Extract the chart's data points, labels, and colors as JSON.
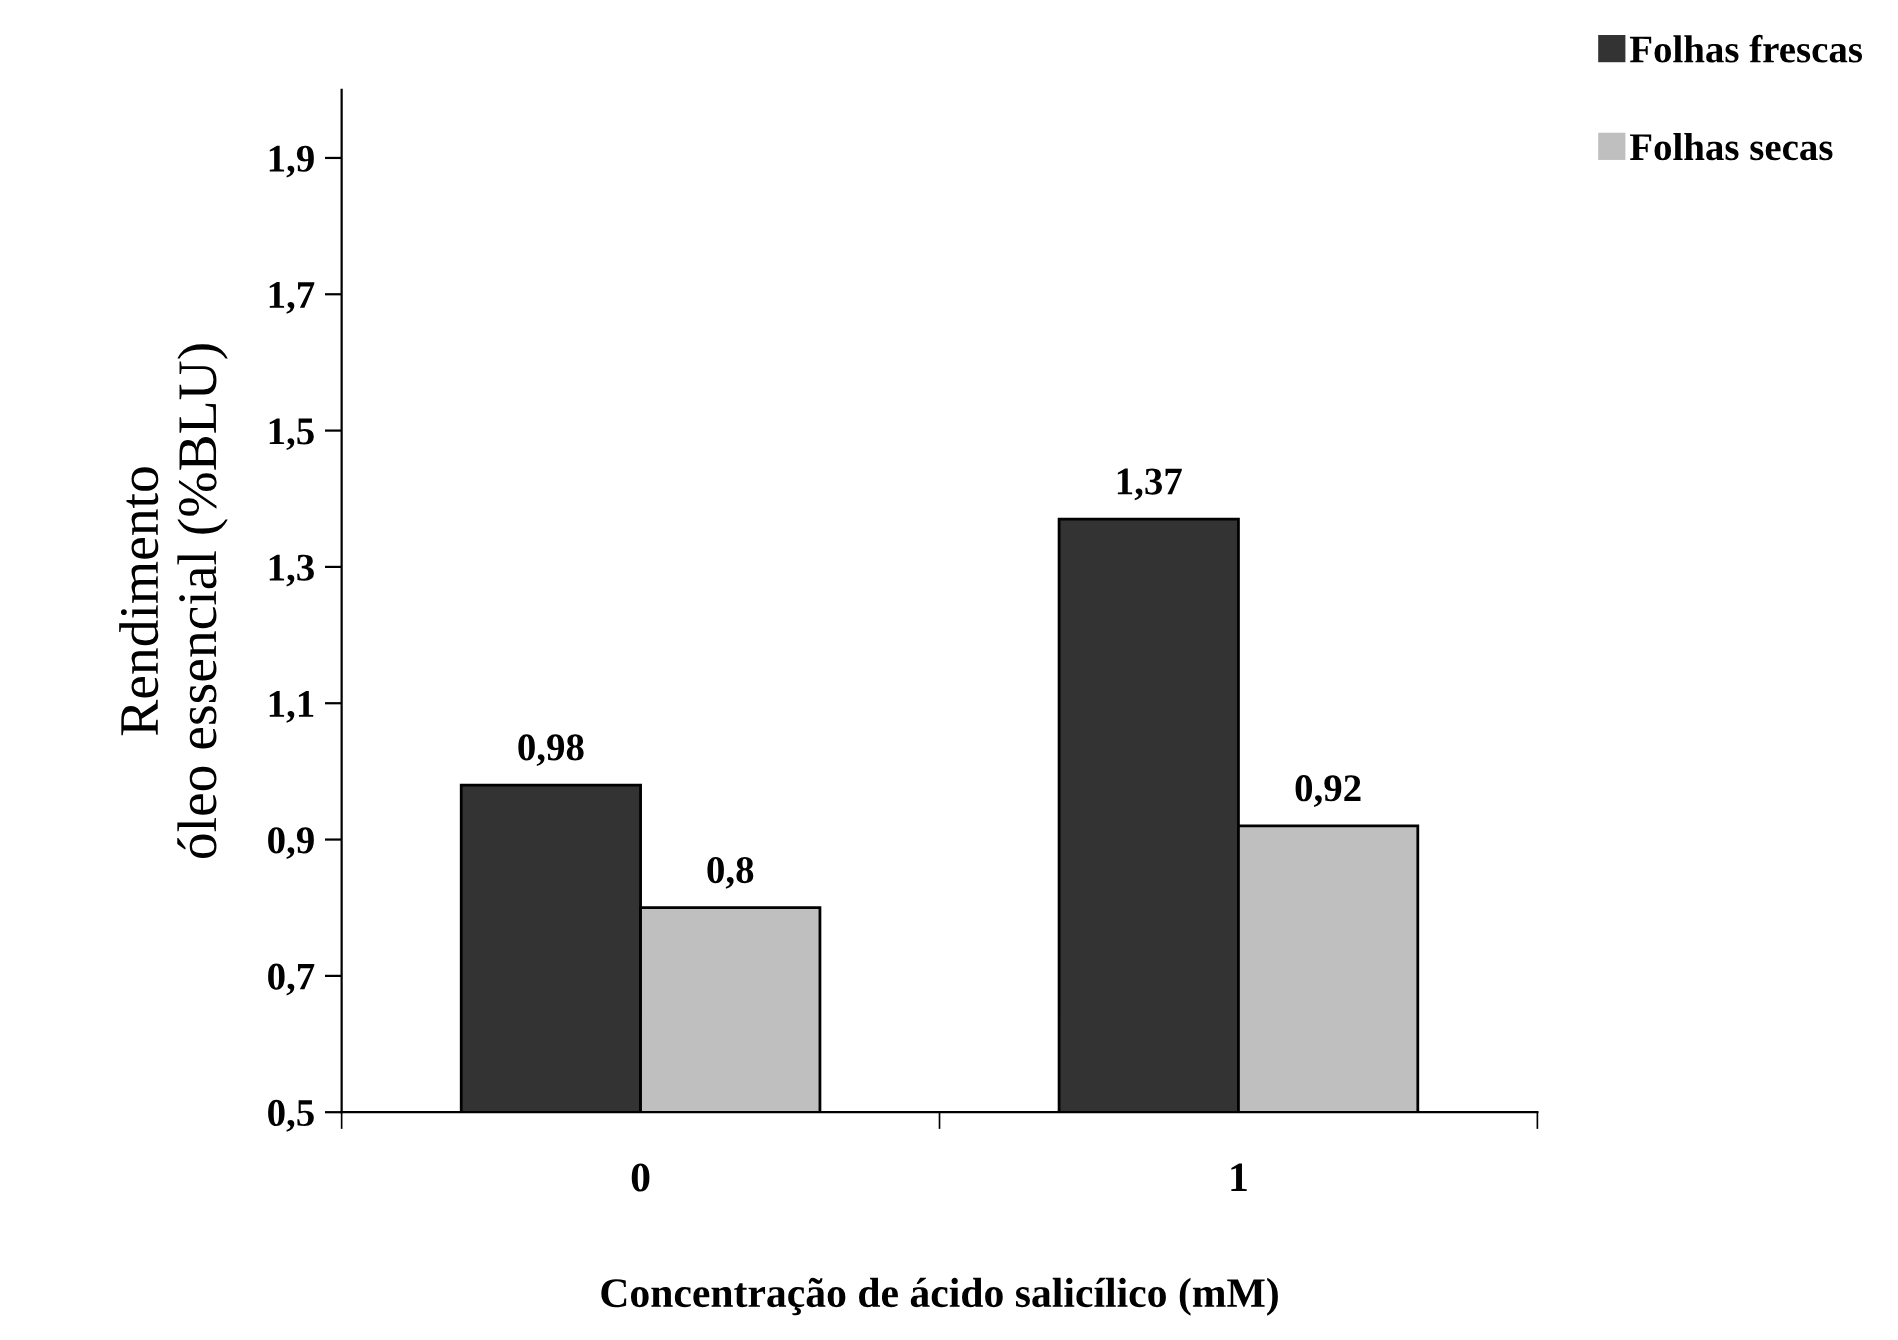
{
  "chart_data": {
    "type": "bar",
    "xlabel": "Concentração de ácido salicílico (mM)",
    "ylabel": "Rendimento\nóleo essencial (%BLU)",
    "categories": [
      "0",
      "1"
    ],
    "series": [
      {
        "name": "Folhas frescas",
        "color": "#333333",
        "values": [
          0.98,
          1.37
        ],
        "value_labels": [
          "0,98",
          "1,37"
        ]
      },
      {
        "name": "Folhas secas",
        "color": "#bfbfbf",
        "values": [
          0.8,
          0.92
        ],
        "value_labels": [
          "0,8",
          "0,92"
        ]
      }
    ],
    "ylim": [
      0.5,
      2.0
    ],
    "yticks": [
      {
        "value": 0.5,
        "label": "0,5"
      },
      {
        "value": 0.7,
        "label": "0,7"
      },
      {
        "value": 0.9,
        "label": "0,9"
      },
      {
        "value": 1.1,
        "label": "1,1"
      },
      {
        "value": 1.3,
        "label": "1,3"
      },
      {
        "value": 1.5,
        "label": "1,5"
      },
      {
        "value": 1.7,
        "label": "1,7"
      },
      {
        "value": 1.9,
        "label": "1,9"
      }
    ],
    "grid": false,
    "legend": "top right"
  }
}
